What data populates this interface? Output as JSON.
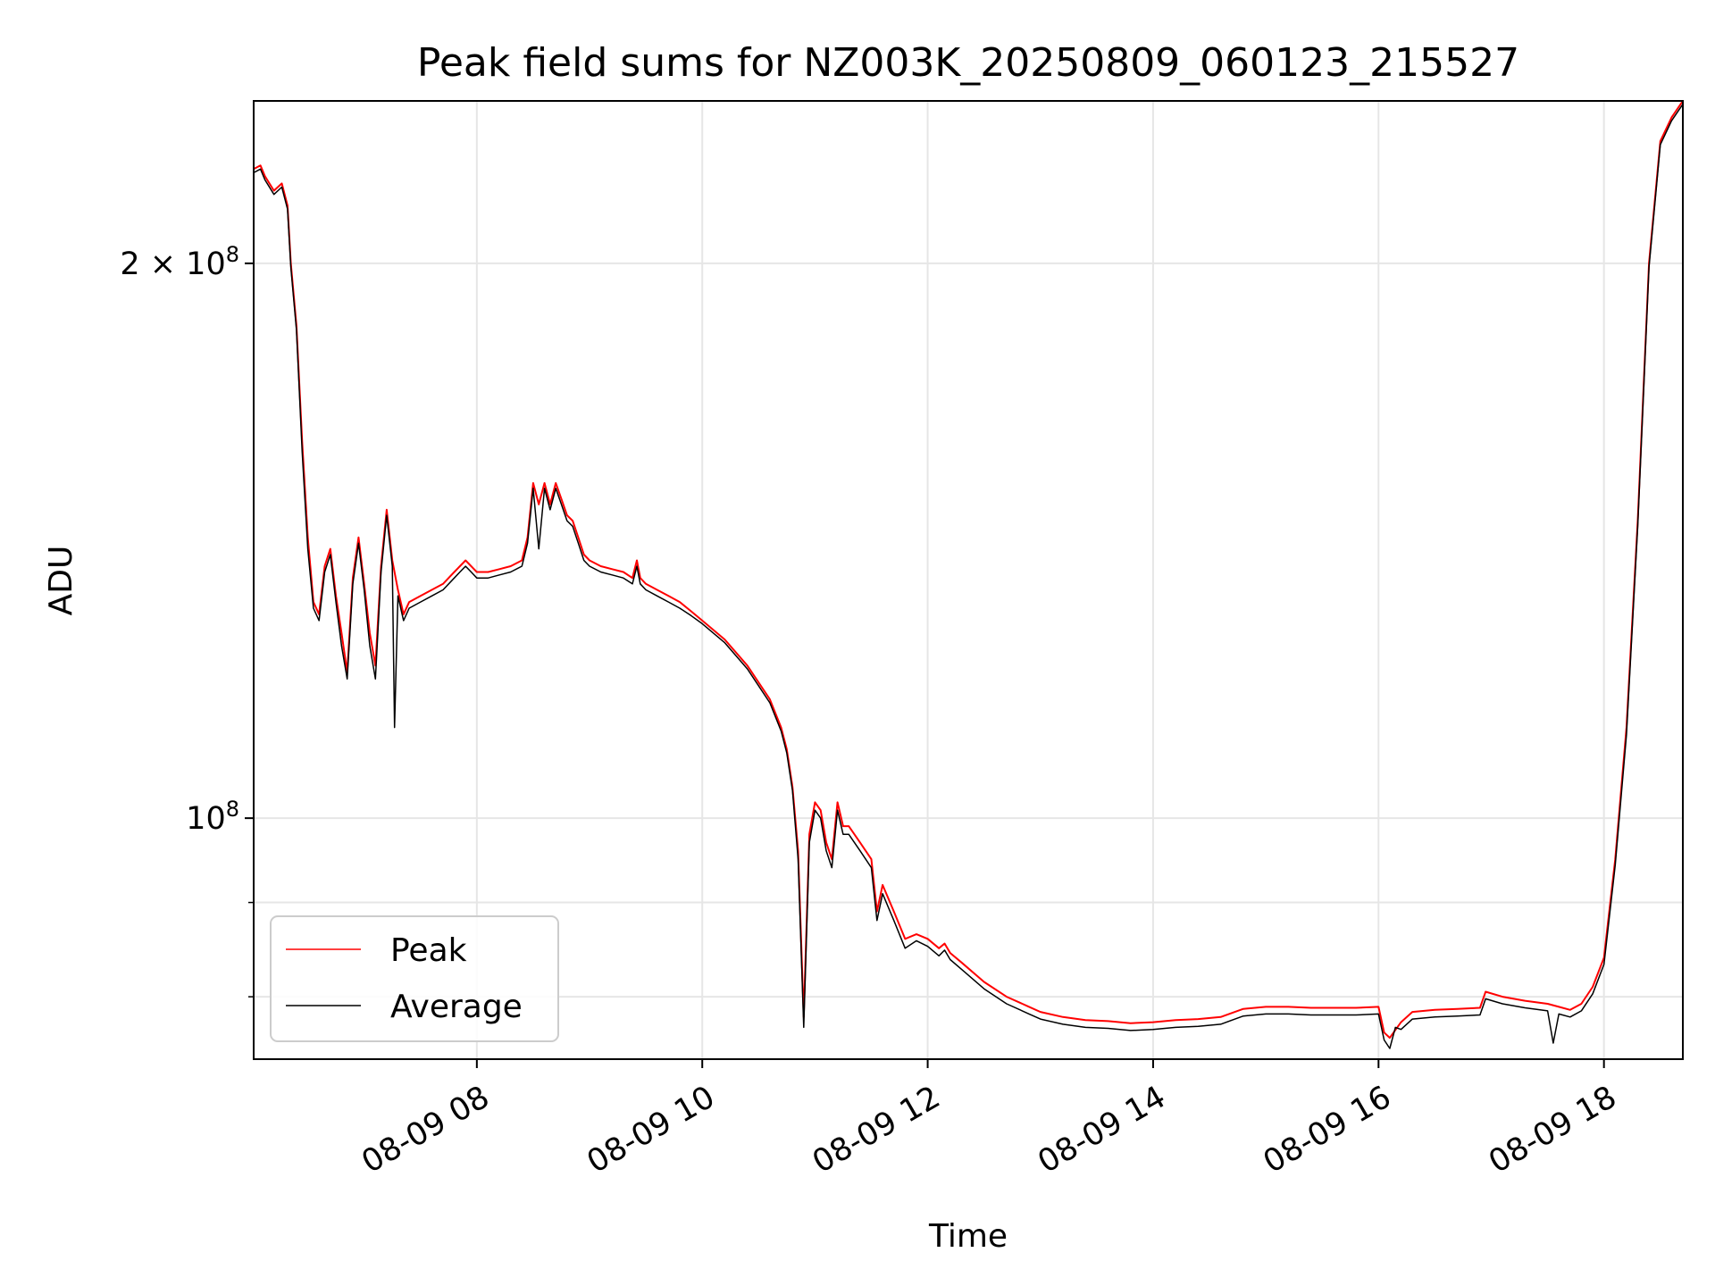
{
  "chart_data": {
    "type": "line",
    "title": "Peak field sums for NZ003K_20250809_060123_215527",
    "xlabel": "Time",
    "ylabel": "ADU",
    "y_scale": "log",
    "x_unit": "hours (2025-08-09, local clock)",
    "xlim": [
      6.02,
      18.7
    ],
    "ylim": [
      74000000,
      245000000
    ],
    "x_ticks": [
      {
        "value": 8,
        "label": "08-09 08"
      },
      {
        "value": 10,
        "label": "08-09 10"
      },
      {
        "value": 12,
        "label": "08-09 12"
      },
      {
        "value": 14,
        "label": "08-09 14"
      },
      {
        "value": 16,
        "label": "08-09 16"
      },
      {
        "value": 18,
        "label": "08-09 18"
      }
    ],
    "y_major_ticks": [
      {
        "value": 200000000,
        "base": "2 × 10",
        "exp": "8"
      },
      {
        "value": 100000000,
        "base": "10",
        "exp": "8"
      }
    ],
    "y_minor_ticks": [
      80000000,
      90000000
    ],
    "grid": true,
    "legend_location": "lower-left",
    "colors": {
      "peak": "#ff0000",
      "average": "#000000",
      "grid": "#e6e6e6"
    },
    "series": [
      {
        "name": "Peak",
        "color": "#ff0000",
        "points": [
          [
            6.02,
            225000000
          ],
          [
            6.08,
            226000000
          ],
          [
            6.12,
            223000000
          ],
          [
            6.2,
            219000000
          ],
          [
            6.27,
            221000000
          ],
          [
            6.32,
            215000000
          ],
          [
            6.35,
            200000000
          ],
          [
            6.4,
            185000000
          ],
          [
            6.45,
            160000000
          ],
          [
            6.5,
            142000000
          ],
          [
            6.55,
            131000000
          ],
          [
            6.6,
            129000000
          ],
          [
            6.65,
            137000000
          ],
          [
            6.7,
            140000000
          ],
          [
            6.75,
            132000000
          ],
          [
            6.8,
            126000000
          ],
          [
            6.85,
            120000000
          ],
          [
            6.9,
            135000000
          ],
          [
            6.95,
            142000000
          ],
          [
            7.0,
            134000000
          ],
          [
            7.05,
            126000000
          ],
          [
            7.1,
            121000000
          ],
          [
            7.15,
            137000000
          ],
          [
            7.2,
            147000000
          ],
          [
            7.25,
            138000000
          ],
          [
            7.3,
            133000000
          ],
          [
            7.35,
            129000000
          ],
          [
            7.4,
            131000000
          ],
          [
            7.5,
            132000000
          ],
          [
            7.6,
            133000000
          ],
          [
            7.7,
            134000000
          ],
          [
            7.8,
            136000000
          ],
          [
            7.85,
            137000000
          ],
          [
            7.9,
            138000000
          ],
          [
            7.95,
            137000000
          ],
          [
            8.0,
            136000000
          ],
          [
            8.1,
            136000000
          ],
          [
            8.2,
            136500000
          ],
          [
            8.3,
            137000000
          ],
          [
            8.4,
            138000000
          ],
          [
            8.45,
            142000000
          ],
          [
            8.5,
            152000000
          ],
          [
            8.55,
            148000000
          ],
          [
            8.6,
            152000000
          ],
          [
            8.65,
            148000000
          ],
          [
            8.7,
            152000000
          ],
          [
            8.75,
            149000000
          ],
          [
            8.8,
            146000000
          ],
          [
            8.85,
            145000000
          ],
          [
            8.9,
            142000000
          ],
          [
            8.95,
            139000000
          ],
          [
            9.0,
            138000000
          ],
          [
            9.1,
            137000000
          ],
          [
            9.2,
            136500000
          ],
          [
            9.3,
            136000000
          ],
          [
            9.38,
            135000000
          ],
          [
            9.42,
            138000000
          ],
          [
            9.45,
            135000000
          ],
          [
            9.5,
            134000000
          ],
          [
            9.6,
            133000000
          ],
          [
            9.7,
            132000000
          ],
          [
            9.8,
            131000000
          ],
          [
            9.9,
            129500000
          ],
          [
            10.0,
            128000000
          ],
          [
            10.2,
            125000000
          ],
          [
            10.4,
            121000000
          ],
          [
            10.6,
            116000000
          ],
          [
            10.7,
            112000000
          ],
          [
            10.75,
            109000000
          ],
          [
            10.8,
            104000000
          ],
          [
            10.85,
            96000000
          ],
          [
            10.9,
            78000000
          ],
          [
            10.95,
            98000000
          ],
          [
            11.0,
            102000000
          ],
          [
            11.05,
            101000000
          ],
          [
            11.1,
            97000000
          ],
          [
            11.15,
            95000000
          ],
          [
            11.2,
            102000000
          ],
          [
            11.25,
            99000000
          ],
          [
            11.3,
            99000000
          ],
          [
            11.4,
            97000000
          ],
          [
            11.5,
            95000000
          ],
          [
            11.55,
            89000000
          ],
          [
            11.6,
            92000000
          ],
          [
            11.7,
            89000000
          ],
          [
            11.8,
            86000000
          ],
          [
            11.9,
            86500000
          ],
          [
            12.0,
            86000000
          ],
          [
            12.1,
            85000000
          ],
          [
            12.15,
            85500000
          ],
          [
            12.2,
            84500000
          ],
          [
            12.3,
            83500000
          ],
          [
            12.5,
            81500000
          ],
          [
            12.7,
            80000000
          ],
          [
            12.9,
            79000000
          ],
          [
            13.0,
            78500000
          ],
          [
            13.2,
            78000000
          ],
          [
            13.4,
            77700000
          ],
          [
            13.6,
            77600000
          ],
          [
            13.8,
            77400000
          ],
          [
            14.0,
            77500000
          ],
          [
            14.2,
            77700000
          ],
          [
            14.4,
            77800000
          ],
          [
            14.6,
            78000000
          ],
          [
            14.8,
            78800000
          ],
          [
            15.0,
            79000000
          ],
          [
            15.2,
            79000000
          ],
          [
            15.4,
            78900000
          ],
          [
            15.6,
            78900000
          ],
          [
            15.8,
            78900000
          ],
          [
            16.0,
            79000000
          ],
          [
            16.05,
            76500000
          ],
          [
            16.1,
            76000000
          ],
          [
            16.2,
            77500000
          ],
          [
            16.3,
            78500000
          ],
          [
            16.5,
            78700000
          ],
          [
            16.7,
            78800000
          ],
          [
            16.9,
            78900000
          ],
          [
            16.95,
            80500000
          ],
          [
            17.1,
            80000000
          ],
          [
            17.3,
            79600000
          ],
          [
            17.5,
            79300000
          ],
          [
            17.6,
            79000000
          ],
          [
            17.7,
            78700000
          ],
          [
            17.8,
            79300000
          ],
          [
            17.9,
            81000000
          ],
          [
            18.0,
            84000000
          ],
          [
            18.1,
            95000000
          ],
          [
            18.2,
            112000000
          ],
          [
            18.3,
            145000000
          ],
          [
            18.4,
            200000000
          ],
          [
            18.5,
            233000000
          ],
          [
            18.6,
            240000000
          ],
          [
            18.7,
            245000000
          ]
        ]
      },
      {
        "name": "Average",
        "color": "#000000",
        "points": [
          [
            6.02,
            224000000
          ],
          [
            6.08,
            225000000
          ],
          [
            6.12,
            222000000
          ],
          [
            6.2,
            218000000
          ],
          [
            6.27,
            220000000
          ],
          [
            6.32,
            214000000
          ],
          [
            6.35,
            199000000
          ],
          [
            6.4,
            184000000
          ],
          [
            6.45,
            158000000
          ],
          [
            6.5,
            140000000
          ],
          [
            6.55,
            130000000
          ],
          [
            6.6,
            128000000
          ],
          [
            6.65,
            136000000
          ],
          [
            6.7,
            139000000
          ],
          [
            6.75,
            131000000
          ],
          [
            6.8,
            124000000
          ],
          [
            6.85,
            119000000
          ],
          [
            6.9,
            134000000
          ],
          [
            6.95,
            141000000
          ],
          [
            7.0,
            133000000
          ],
          [
            7.05,
            124000000
          ],
          [
            7.1,
            119000000
          ],
          [
            7.15,
            136000000
          ],
          [
            7.2,
            146000000
          ],
          [
            7.25,
            137000000
          ],
          [
            7.27,
            112000000
          ],
          [
            7.3,
            132000000
          ],
          [
            7.35,
            128000000
          ],
          [
            7.4,
            130000000
          ],
          [
            7.5,
            131000000
          ],
          [
            7.6,
            132000000
          ],
          [
            7.7,
            133000000
          ],
          [
            7.8,
            135000000
          ],
          [
            7.85,
            136000000
          ],
          [
            7.9,
            137000000
          ],
          [
            7.95,
            136000000
          ],
          [
            8.0,
            135000000
          ],
          [
            8.1,
            135000000
          ],
          [
            8.2,
            135500000
          ],
          [
            8.3,
            136000000
          ],
          [
            8.4,
            137000000
          ],
          [
            8.45,
            141000000
          ],
          [
            8.5,
            151000000
          ],
          [
            8.55,
            140000000
          ],
          [
            8.6,
            151000000
          ],
          [
            8.65,
            147000000
          ],
          [
            8.7,
            151000000
          ],
          [
            8.75,
            148000000
          ],
          [
            8.8,
            145000000
          ],
          [
            8.85,
            144000000
          ],
          [
            8.9,
            141000000
          ],
          [
            8.95,
            138000000
          ],
          [
            9.0,
            137000000
          ],
          [
            9.1,
            136000000
          ],
          [
            9.2,
            135500000
          ],
          [
            9.3,
            135000000
          ],
          [
            9.38,
            134000000
          ],
          [
            9.42,
            137000000
          ],
          [
            9.45,
            134000000
          ],
          [
            9.5,
            133000000
          ],
          [
            9.6,
            132000000
          ],
          [
            9.7,
            131000000
          ],
          [
            9.8,
            130000000
          ],
          [
            9.9,
            128800000
          ],
          [
            10.0,
            127500000
          ],
          [
            10.2,
            124500000
          ],
          [
            10.4,
            120500000
          ],
          [
            10.6,
            115500000
          ],
          [
            10.7,
            111500000
          ],
          [
            10.75,
            108500000
          ],
          [
            10.8,
            103500000
          ],
          [
            10.85,
            95000000
          ],
          [
            10.9,
            77000000
          ],
          [
            10.95,
            97000000
          ],
          [
            11.0,
            101000000
          ],
          [
            11.05,
            100000000
          ],
          [
            11.1,
            96000000
          ],
          [
            11.15,
            94000000
          ],
          [
            11.2,
            101000000
          ],
          [
            11.25,
            98000000
          ],
          [
            11.3,
            98000000
          ],
          [
            11.4,
            96000000
          ],
          [
            11.5,
            94000000
          ],
          [
            11.55,
            88000000
          ],
          [
            11.6,
            91000000
          ],
          [
            11.7,
            88000000
          ],
          [
            11.8,
            85000000
          ],
          [
            11.9,
            85800000
          ],
          [
            12.0,
            85200000
          ],
          [
            12.1,
            84200000
          ],
          [
            12.15,
            84800000
          ],
          [
            12.2,
            83800000
          ],
          [
            12.3,
            82800000
          ],
          [
            12.5,
            80800000
          ],
          [
            12.7,
            79300000
          ],
          [
            12.9,
            78300000
          ],
          [
            13.0,
            77800000
          ],
          [
            13.2,
            77300000
          ],
          [
            13.4,
            77000000
          ],
          [
            13.6,
            76900000
          ],
          [
            13.8,
            76700000
          ],
          [
            14.0,
            76800000
          ],
          [
            14.2,
            77000000
          ],
          [
            14.4,
            77100000
          ],
          [
            14.6,
            77300000
          ],
          [
            14.8,
            78100000
          ],
          [
            15.0,
            78300000
          ],
          [
            15.2,
            78300000
          ],
          [
            15.4,
            78200000
          ],
          [
            15.6,
            78200000
          ],
          [
            15.8,
            78200000
          ],
          [
            16.0,
            78300000
          ],
          [
            16.05,
            75800000
          ],
          [
            16.1,
            75000000
          ],
          [
            16.15,
            77000000
          ],
          [
            16.2,
            76800000
          ],
          [
            16.3,
            77800000
          ],
          [
            16.5,
            78000000
          ],
          [
            16.7,
            78100000
          ],
          [
            16.9,
            78200000
          ],
          [
            16.95,
            79800000
          ],
          [
            17.1,
            79300000
          ],
          [
            17.3,
            78900000
          ],
          [
            17.5,
            78600000
          ],
          [
            17.55,
            75500000
          ],
          [
            17.6,
            78300000
          ],
          [
            17.7,
            78000000
          ],
          [
            17.8,
            78600000
          ],
          [
            17.9,
            80300000
          ],
          [
            18.0,
            83300000
          ],
          [
            18.1,
            94300000
          ],
          [
            18.2,
            111000000
          ],
          [
            18.3,
            144000000
          ],
          [
            18.4,
            199000000
          ],
          [
            18.5,
            232000000
          ],
          [
            18.6,
            239000000
          ],
          [
            18.7,
            244000000
          ]
        ]
      }
    ]
  }
}
